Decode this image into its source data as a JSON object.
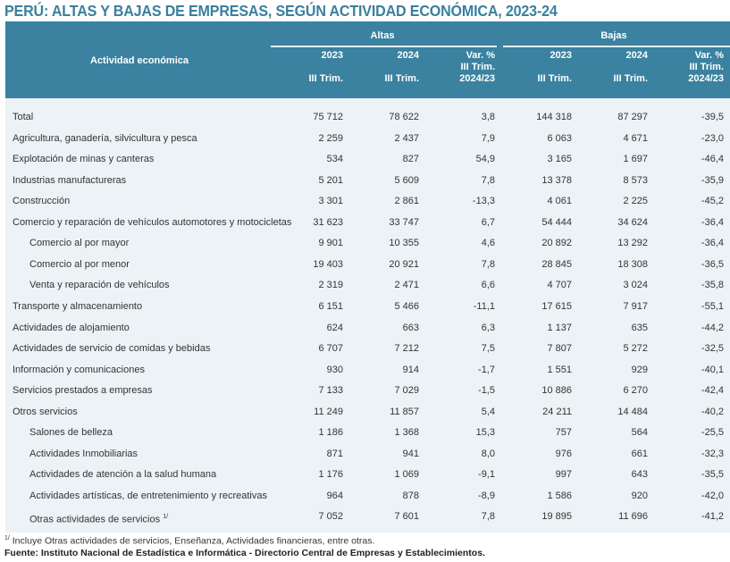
{
  "title": "PERÚ: ALTAS Y BAJAS DE EMPRESAS, SEGÚN ACTIVIDAD ECONÓMICA, 2023-24",
  "header": {
    "activity": "Actividad económica",
    "altas": "Altas",
    "bajas": "Bajas",
    "y2023": "2023",
    "y2024": "2024",
    "trim": "III Trim.",
    "var1": "Var. %",
    "var2": "III Trim.",
    "var3": "2024/23"
  },
  "rows": [
    {
      "label": "Total",
      "v": [
        "75 712",
        "78 622",
        "3,8",
        "144 318",
        "87 297",
        "-39,5"
      ],
      "type": "total"
    },
    {
      "label": "Agricultura, ganadería, silvicultura y pesca",
      "v": [
        "2 259",
        "2 437",
        "7,9",
        "6 063",
        "4 671",
        "-23,0"
      ]
    },
    {
      "label": "Explotación de minas y canteras",
      "v": [
        "534",
        "827",
        "54,9",
        "3 165",
        "1 697",
        "-46,4"
      ]
    },
    {
      "label": "Industrias manufactureras",
      "v": [
        "5 201",
        "5 609",
        "7,8",
        "13 378",
        "8 573",
        "-35,9"
      ]
    },
    {
      "label": "Construcción",
      "v": [
        "3 301",
        "2 861",
        "-13,3",
        "4 061",
        "2 225",
        "-45,2"
      ]
    },
    {
      "label": "Comercio y reparación de vehículos automotores y motocicletas",
      "v": [
        "31 623",
        "33 747",
        "6,7",
        "54 444",
        "34 624",
        "-36,4"
      ]
    },
    {
      "label": "Comercio al por mayor",
      "v": [
        "9 901",
        "10 355",
        "4,6",
        "20 892",
        "13 292",
        "-36,4"
      ],
      "type": "sub"
    },
    {
      "label": "Comercio al por menor",
      "v": [
        "19 403",
        "20 921",
        "7,8",
        "28 845",
        "18 308",
        "-36,5"
      ],
      "type": "sub"
    },
    {
      "label": "Venta y reparación de vehículos",
      "v": [
        "2 319",
        "2 471",
        "6,6",
        "4 707",
        "3 024",
        "-35,8"
      ],
      "type": "sub"
    },
    {
      "label": "Transporte y almacenamiento",
      "v": [
        "6 151",
        "5 466",
        "-11,1",
        "17 615",
        "7 917",
        "-55,1"
      ]
    },
    {
      "label": "Actividades de alojamiento",
      "v": [
        "624",
        "663",
        "6,3",
        "1 137",
        "635",
        "-44,2"
      ]
    },
    {
      "label": "Actividades de servicio de comidas y bebidas",
      "v": [
        "6 707",
        "7 212",
        "7,5",
        "7 807",
        "5 272",
        "-32,5"
      ]
    },
    {
      "label": "Información y comunicaciones",
      "v": [
        "930",
        "914",
        "-1,7",
        "1 551",
        "929",
        "-40,1"
      ]
    },
    {
      "label": "Servicios prestados a empresas",
      "v": [
        "7 133",
        "7 029",
        "-1,5",
        "10 886",
        "6 270",
        "-42,4"
      ]
    },
    {
      "label": "Otros servicios",
      "v": [
        "11 249",
        "11 857",
        "5,4",
        "24 211",
        "14 484",
        "-40,2"
      ]
    },
    {
      "label": "Salones de belleza",
      "v": [
        "1 186",
        "1 368",
        "15,3",
        "757",
        "564",
        "-25,5"
      ],
      "type": "sub"
    },
    {
      "label": "Actividades Inmobiliarias",
      "v": [
        "871",
        "941",
        "8,0",
        "976",
        "661",
        "-32,3"
      ],
      "type": "sub"
    },
    {
      "label": "Actividades de atención a la salud humana",
      "v": [
        "1 176",
        "1 069",
        "-9,1",
        "997",
        "643",
        "-35,5"
      ],
      "type": "sub"
    },
    {
      "label": "Actividades artísticas, de entretenimiento y recreativas",
      "v": [
        "964",
        "878",
        "-8,9",
        "1 586",
        "920",
        "-42,0"
      ],
      "type": "sub"
    },
    {
      "label": "Otras actividades de servicios",
      "sup": "1/",
      "v": [
        "7 052",
        "7 601",
        "7,8",
        "19 895",
        "11 696",
        "-41,2"
      ],
      "type": "sub"
    }
  ],
  "footnote_mark": "1/",
  "footnote": "Incluye Otras actividades de servicios, Enseñanza, Actividades financieras, entre otras.",
  "source": "Fuente: Instituto Nacional de Estadística e Informática - Directorio Central de Empresas y Establecimientos."
}
